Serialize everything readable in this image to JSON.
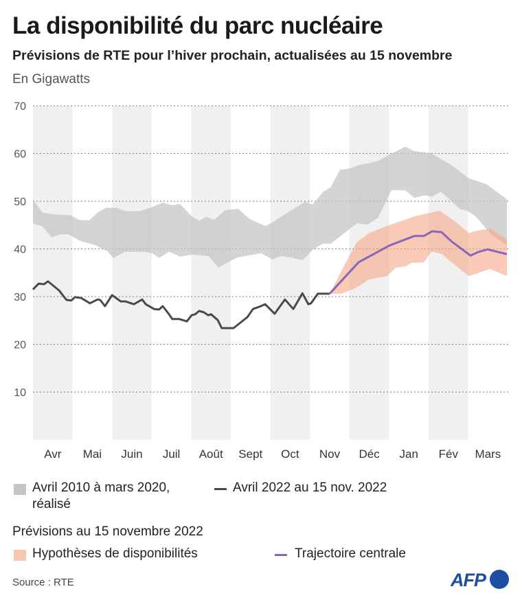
{
  "title": "La disponibilité du parc nucléaire",
  "subtitle": "Prévisions de RTE pour l’hiver prochain, actualisées au 15 novembre",
  "unit_label": "En Gigawatts",
  "legend": {
    "historical_band": "Avril 2010 à mars 2020,",
    "historical_band_line2": "réalisé",
    "actual_2022": "Avril 2022 au 15 nov. 2022",
    "forecast_heading": "Prévisions au 15 novembre 2022",
    "hypotheses_band": "Hypothèses de disponibilités",
    "central": "Trajectoire centrale"
  },
  "source": "Source : RTE",
  "logo": "AFP",
  "colors": {
    "band": "#c4c4c4",
    "actual": "#4a4a4a",
    "forecast_band": "#f5a887",
    "central": "#8865bb",
    "month_shade": "#f0f0f0",
    "logo": "#1c4fa1"
  },
  "chart_data": {
    "type": "line",
    "title": "La disponibilité du parc nucléaire",
    "ylabel": "En Gigawatts",
    "ylim": [
      0,
      70
    ],
    "yticks": [
      10,
      20,
      30,
      40,
      50,
      60,
      70
    ],
    "grid": "horizontal dotted",
    "x_unit": "months since start of April 2022",
    "categories": [
      "Avr",
      "Mai",
      "Juin",
      "Juil",
      "Août",
      "Sept",
      "Oct",
      "Nov",
      "Déc",
      "Jan",
      "Fév",
      "Mars"
    ],
    "series": [
      {
        "name": "Avril 2010 à mars 2020, réalisé",
        "kind": "band",
        "upper": [
          [
            0,
            50.4
          ],
          [
            0.24,
            47.6
          ],
          [
            0.47,
            47.3
          ],
          [
            0.97,
            47.0
          ],
          [
            1.15,
            46.1
          ],
          [
            1.42,
            46.0
          ],
          [
            1.63,
            47.6
          ],
          [
            1.84,
            48.6
          ],
          [
            2.12,
            48.6
          ],
          [
            2.33,
            47.9
          ],
          [
            2.69,
            47.9
          ],
          [
            2.99,
            48.7
          ],
          [
            3.28,
            49.7
          ],
          [
            3.51,
            49.2
          ],
          [
            3.72,
            49.4
          ],
          [
            4.03,
            46.7
          ],
          [
            4.2,
            45.9
          ],
          [
            4.38,
            46.7
          ],
          [
            4.58,
            46.1
          ],
          [
            4.86,
            48.1
          ],
          [
            5.19,
            48.4
          ],
          [
            5.47,
            46.3
          ],
          [
            5.87,
            44.8
          ],
          [
            6.06,
            45.6
          ],
          [
            6.53,
            48.1
          ],
          [
            6.88,
            49.9
          ],
          [
            7.07,
            49.3
          ],
          [
            7.33,
            51.9
          ],
          [
            7.53,
            53.0
          ],
          [
            7.76,
            56.6
          ],
          [
            7.99,
            56.8
          ],
          [
            8.25,
            57.6
          ],
          [
            8.58,
            58.1
          ],
          [
            8.77,
            58.6
          ],
          [
            9.01,
            59.8
          ],
          [
            9.41,
            61.4
          ],
          [
            9.64,
            60.5
          ],
          [
            10.05,
            60.1
          ],
          [
            10.57,
            57.6
          ],
          [
            11.02,
            54.8
          ],
          [
            11.46,
            53.6
          ],
          [
            11.98,
            50.4
          ]
        ],
        "lower": [
          [
            0,
            45.3
          ],
          [
            0.24,
            44.7
          ],
          [
            0.47,
            42.4
          ],
          [
            0.66,
            43.0
          ],
          [
            0.9,
            43.1
          ],
          [
            1.18,
            41.7
          ],
          [
            1.6,
            40.7
          ],
          [
            1.88,
            39.5
          ],
          [
            2.03,
            38.1
          ],
          [
            2.33,
            39.4
          ],
          [
            2.78,
            39.4
          ],
          [
            3.02,
            39.1
          ],
          [
            3.19,
            38.1
          ],
          [
            3.44,
            39.4
          ],
          [
            3.72,
            38.4
          ],
          [
            4.03,
            38.8
          ],
          [
            4.44,
            38.5
          ],
          [
            4.69,
            36.1
          ],
          [
            5.16,
            38.2
          ],
          [
            5.76,
            39.1
          ],
          [
            6.06,
            37.8
          ],
          [
            6.28,
            38.5
          ],
          [
            6.53,
            38.2
          ],
          [
            6.81,
            37.6
          ],
          [
            7.07,
            39.8
          ],
          [
            7.33,
            41.1
          ],
          [
            7.53,
            41.1
          ],
          [
            8.19,
            45.4
          ],
          [
            8.45,
            45.1
          ],
          [
            8.72,
            46.5
          ],
          [
            9.06,
            52.3
          ],
          [
            9.41,
            52.3
          ],
          [
            9.64,
            50.7
          ],
          [
            9.88,
            51.2
          ],
          [
            10.1,
            51.0
          ],
          [
            10.31,
            52.0
          ],
          [
            10.8,
            48.3
          ],
          [
            10.97,
            48.0
          ],
          [
            11.18,
            46.9
          ],
          [
            11.61,
            42.8
          ],
          [
            11.98,
            40.8
          ]
        ]
      },
      {
        "name": "Hypothèses de disponibilités",
        "kind": "band",
        "upper": [
          [
            7.5,
            30.6
          ],
          [
            7.93,
            37.5
          ],
          [
            8.19,
            41.4
          ],
          [
            8.49,
            43.3
          ],
          [
            9.01,
            45.0
          ],
          [
            9.64,
            46.8
          ],
          [
            10.28,
            48.0
          ],
          [
            10.68,
            45.7
          ],
          [
            11.02,
            43.3
          ],
          [
            11.15,
            43.7
          ],
          [
            11.55,
            44.3
          ],
          [
            11.98,
            42.1
          ]
        ],
        "lower": [
          [
            7.5,
            30.6
          ],
          [
            7.8,
            30.6
          ],
          [
            8.14,
            31.7
          ],
          [
            8.49,
            33.6
          ],
          [
            8.94,
            34.3
          ],
          [
            9.18,
            36.1
          ],
          [
            9.41,
            36.3
          ],
          [
            9.58,
            37.1
          ],
          [
            9.88,
            37.2
          ],
          [
            10.07,
            39.4
          ],
          [
            10.33,
            39.0
          ],
          [
            10.49,
            37.8
          ],
          [
            11.02,
            34.3
          ],
          [
            11.55,
            35.8
          ],
          [
            11.98,
            34.3
          ]
        ]
      },
      {
        "name": "Avril 2022 au 15 nov. 2022",
        "kind": "line",
        "points": [
          [
            0,
            31.5
          ],
          [
            0.14,
            32.7
          ],
          [
            0.28,
            32.6
          ],
          [
            0.38,
            33.2
          ],
          [
            0.66,
            31.3
          ],
          [
            0.78,
            30.0
          ],
          [
            0.85,
            29.3
          ],
          [
            0.97,
            29.2
          ],
          [
            1.06,
            29.9
          ],
          [
            1.22,
            29.7
          ],
          [
            1.44,
            28.6
          ],
          [
            1.63,
            29.4
          ],
          [
            1.7,
            29.3
          ],
          [
            1.82,
            28.0
          ],
          [
            2.0,
            30.3
          ],
          [
            2.22,
            29.0
          ],
          [
            2.34,
            29.0
          ],
          [
            2.55,
            28.4
          ],
          [
            2.76,
            29.4
          ],
          [
            2.85,
            28.4
          ],
          [
            3.06,
            27.4
          ],
          [
            3.19,
            27.3
          ],
          [
            3.28,
            28.0
          ],
          [
            3.44,
            26.3
          ],
          [
            3.52,
            25.3
          ],
          [
            3.7,
            25.3
          ],
          [
            3.89,
            24.8
          ],
          [
            4.01,
            26.1
          ],
          [
            4.1,
            26.3
          ],
          [
            4.2,
            27.0
          ],
          [
            4.32,
            26.7
          ],
          [
            4.43,
            26.1
          ],
          [
            4.5,
            26.3
          ],
          [
            4.67,
            25.1
          ],
          [
            4.77,
            23.4
          ],
          [
            5.07,
            23.4
          ],
          [
            5.42,
            25.7
          ],
          [
            5.56,
            27.4
          ],
          [
            5.73,
            27.9
          ],
          [
            5.87,
            28.4
          ],
          [
            6.11,
            26.4
          ],
          [
            6.37,
            29.4
          ],
          [
            6.58,
            27.4
          ],
          [
            6.81,
            30.7
          ],
          [
            6.96,
            28.4
          ],
          [
            7.03,
            28.6
          ],
          [
            7.2,
            30.6
          ],
          [
            7.5,
            30.6
          ]
        ]
      },
      {
        "name": "Trajectoire centrale",
        "kind": "line",
        "points": [
          [
            7.5,
            30.6
          ],
          [
            8.23,
            37.2
          ],
          [
            9.01,
            40.7
          ],
          [
            9.64,
            42.7
          ],
          [
            9.88,
            42.7
          ],
          [
            10.09,
            43.7
          ],
          [
            10.33,
            43.5
          ],
          [
            10.59,
            41.5
          ],
          [
            11.06,
            38.6
          ],
          [
            11.27,
            39.4
          ],
          [
            11.49,
            39.9
          ],
          [
            11.98,
            38.9
          ]
        ]
      }
    ]
  }
}
